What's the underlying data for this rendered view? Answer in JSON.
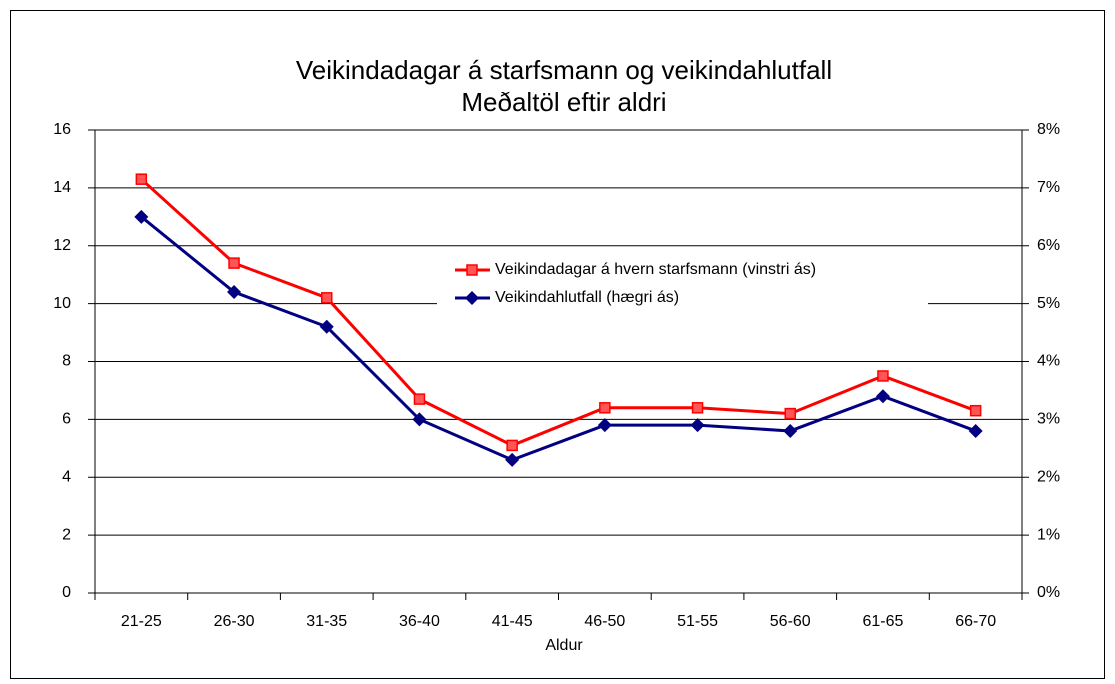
{
  "chart_data": {
    "type": "line",
    "title": "Veikindadagar á starfsmann og veikindahlutfall",
    "subtitle": "Meðaltöl eftir aldri",
    "x_label": "Aldur",
    "categories": [
      "21-25",
      "26-30",
      "31-35",
      "36-40",
      "41-45",
      "46-50",
      "51-55",
      "56-60",
      "61-65",
      "66-70"
    ],
    "series": [
      {
        "name": "Veikindadagar á hvern starfsmann (vinstri ás)",
        "color": "#ff0000",
        "marker": "square",
        "values": [
          14.3,
          11.4,
          10.2,
          6.7,
          5.1,
          6.4,
          6.4,
          6.2,
          7.5,
          6.3
        ]
      },
      {
        "name": "Veikindahlutfall (hægri ás)",
        "color": "#000080",
        "marker": "diamond",
        "axis": "y2",
        "values": [
          6.5,
          5.2,
          4.6,
          3.0,
          2.3,
          2.9,
          2.9,
          2.8,
          3.4,
          2.8
        ]
      }
    ],
    "ylim": [
      0,
      16
    ],
    "yticks": [
      0,
      2,
      4,
      6,
      8,
      10,
      12,
      14,
      16
    ],
    "y2lim": [
      0,
      8
    ],
    "y2ticks": [
      {
        "value": 0,
        "label": "0%"
      },
      {
        "value": 1,
        "label": "1%"
      },
      {
        "value": 2,
        "label": "2%"
      },
      {
        "value": 3,
        "label": "3%"
      },
      {
        "value": 4,
        "label": "4%"
      },
      {
        "value": 5,
        "label": "5%"
      },
      {
        "value": 6,
        "label": "6%"
      },
      {
        "value": 7,
        "label": "7%"
      },
      {
        "value": 8,
        "label": "8%"
      }
    ],
    "grid": true
  }
}
